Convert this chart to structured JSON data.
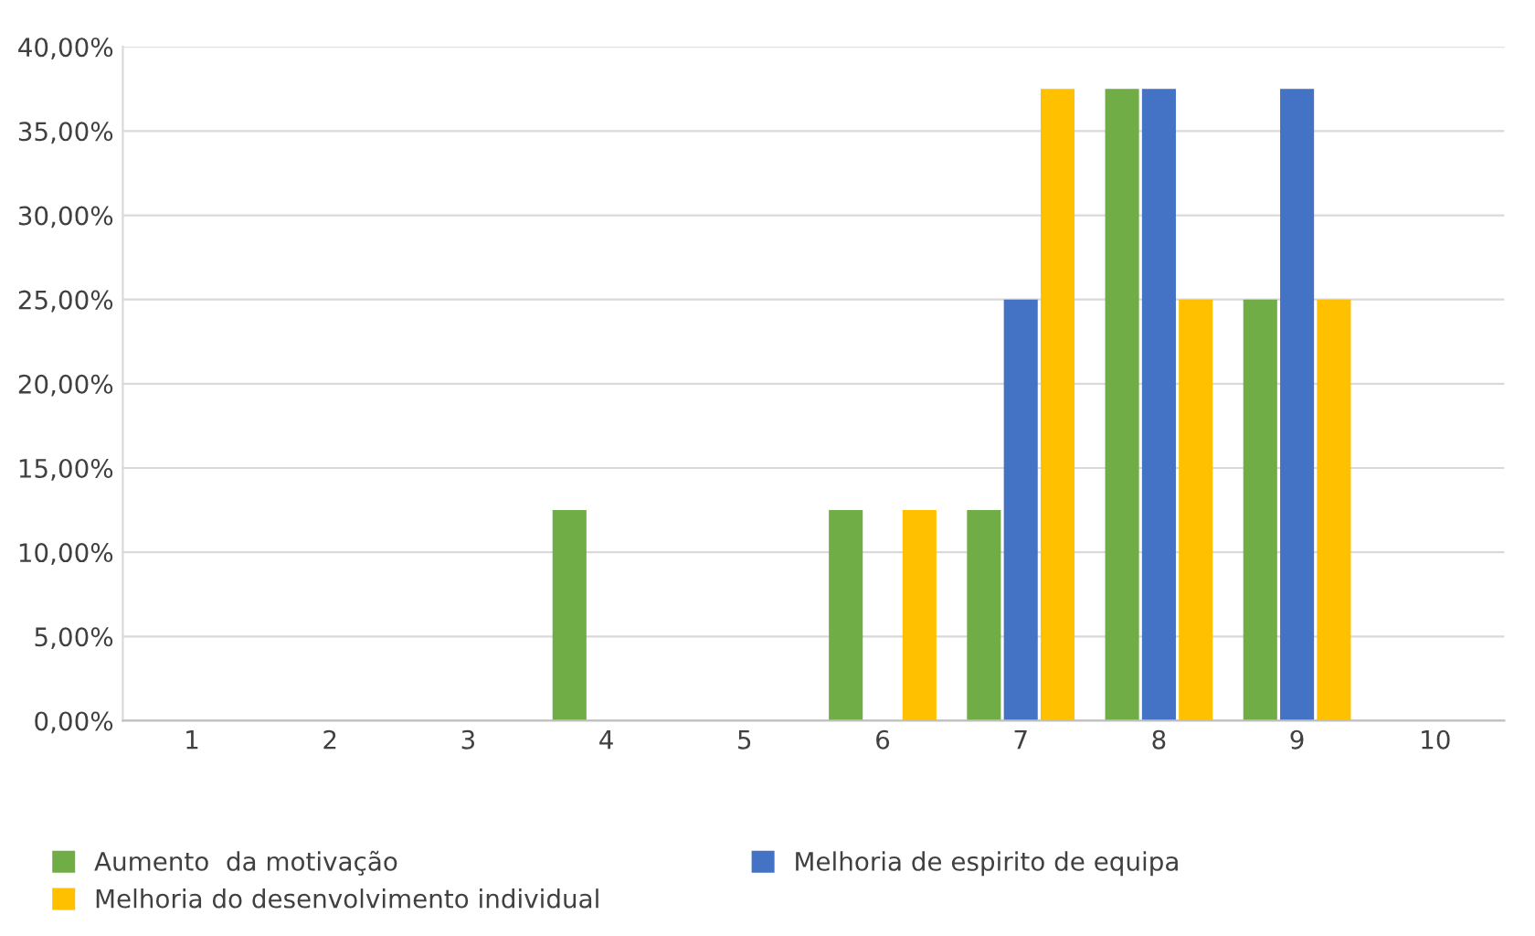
{
  "chart_data": {
    "type": "bar",
    "categories": [
      "1",
      "2",
      "3",
      "4",
      "5",
      "6",
      "7",
      "8",
      "9",
      "10"
    ],
    "series": [
      {
        "name": "Aumento  da motivação",
        "color": "#70ad47",
        "values": [
          null,
          null,
          null,
          12.5,
          null,
          12.5,
          12.5,
          37.5,
          25,
          null
        ]
      },
      {
        "name": "Melhoria de espirito de equipa",
        "color": "#4472c4",
        "values": [
          null,
          null,
          null,
          null,
          null,
          null,
          25,
          37.5,
          37.5,
          null
        ]
      },
      {
        "name": "Melhoria do desenvolvimento individual",
        "color": "#ffc000",
        "values": [
          null,
          null,
          null,
          null,
          null,
          12.5,
          37.5,
          25,
          25,
          null
        ]
      }
    ],
    "ylim": [
      0,
      40
    ],
    "yticks": [
      {
        "value": 0,
        "label": "0,00%"
      },
      {
        "value": 5,
        "label": "5,00%"
      },
      {
        "value": 10,
        "label": "10,00%"
      },
      {
        "value": 15,
        "label": "15,00%"
      },
      {
        "value": 20,
        "label": "20,00%"
      },
      {
        "value": 25,
        "label": "25,00%"
      },
      {
        "value": 30,
        "label": "30,00%"
      },
      {
        "value": 35,
        "label": "35,00%"
      },
      {
        "value": 40,
        "label": "40,00%"
      }
    ],
    "grid": "y",
    "legend": "bottom"
  }
}
